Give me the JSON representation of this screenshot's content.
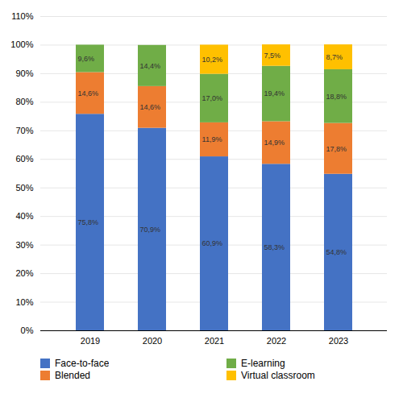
{
  "chart_data": {
    "type": "bar",
    "stacked": true,
    "categories": [
      "2019",
      "2020",
      "2021",
      "2022",
      "2023"
    ],
    "series": [
      {
        "name": "Face-to-face",
        "color": "#4472C4",
        "values": [
          75.8,
          70.9,
          60.9,
          58.3,
          54.8
        ],
        "value_labels": [
          "75,8%",
          "70,9%",
          "60,9%",
          "58,3%",
          "54,8%"
        ]
      },
      {
        "name": "Blended",
        "color": "#ED7D31",
        "values": [
          14.6,
          14.6,
          11.9,
          14.9,
          17.8
        ],
        "value_labels": [
          "14,6%",
          "14,6%",
          "11,9%",
          "14,9%",
          "17,8%"
        ]
      },
      {
        "name": "E-learning",
        "color": "#70AD47",
        "values": [
          9.6,
          14.4,
          17.0,
          19.4,
          18.8
        ],
        "value_labels": [
          "9,6%",
          "14,4%",
          "17,0%",
          "19,4%",
          "18,8%"
        ]
      },
      {
        "name": "Virtual classroom",
        "color": "#FFC000",
        "values": [
          0.0,
          0.0,
          10.2,
          7.5,
          8.7
        ],
        "value_labels": [
          null,
          null,
          "10,2%",
          "7,5%",
          "8,7%"
        ]
      }
    ],
    "ylim": [
      0,
      110
    ],
    "yticks": [
      {
        "value": 0,
        "label": "0%"
      },
      {
        "value": 10,
        "label": "10%"
      },
      {
        "value": 20,
        "label": "20%"
      },
      {
        "value": 30,
        "label": "30%"
      },
      {
        "value": 40,
        "label": "40%"
      },
      {
        "value": 50,
        "label": "50%"
      },
      {
        "value": 60,
        "label": "60%"
      },
      {
        "value": 70,
        "label": "70%"
      },
      {
        "value": 80,
        "label": "80%"
      },
      {
        "value": 90,
        "label": "90%"
      },
      {
        "value": 100,
        "label": "100%"
      },
      {
        "value": 110,
        "label": "110%"
      }
    ],
    "grid": true,
    "data_labels": true,
    "legend": "bottom"
  }
}
